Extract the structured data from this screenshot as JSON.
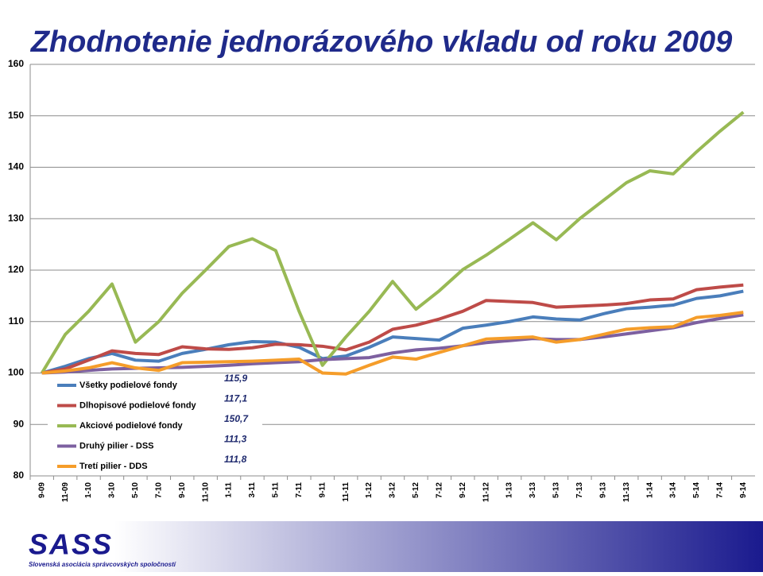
{
  "chart_data": {
    "type": "line",
    "title": "Zhodnotenie jednorázového vkladu od roku 2009",
    "categories": [
      "9-09",
      "11-09",
      "1-10",
      "3-10",
      "5-10",
      "7-10",
      "9-10",
      "11-10",
      "1-11",
      "3-11",
      "5-11",
      "7-11",
      "9-11",
      "11-11",
      "1-12",
      "3-12",
      "5-12",
      "7-12",
      "9-12",
      "11-12",
      "1-13",
      "3-13",
      "5-13",
      "7-13",
      "9-13",
      "11-13",
      "1-14",
      "3-14",
      "5-14",
      "7-14",
      "9-14"
    ],
    "series": [
      {
        "name": "Všetky podielové fondy",
        "color": "#4a7ebb",
        "values": [
          100,
          101.3,
          102.8,
          103.8,
          102.5,
          102.3,
          103.8,
          104.6,
          105.5,
          106.1,
          106,
          105,
          102.8,
          103.3,
          105,
          107,
          106.7,
          106.4,
          108.7,
          109.3,
          110,
          110.9,
          110.5,
          110.3,
          111.5,
          112.5,
          112.8,
          113.2,
          114.5,
          115,
          115.9
        ]
      },
      {
        "name": "Dlhopisové podielové fondy",
        "color": "#be4b48",
        "values": [
          100,
          100.8,
          102.5,
          104.3,
          103.8,
          103.6,
          105.1,
          104.7,
          104.6,
          104.9,
          105.6,
          105.5,
          105.2,
          104.5,
          106,
          108.5,
          109.3,
          110.5,
          112,
          114.1,
          113.9,
          113.7,
          112.8,
          113,
          113.2,
          113.5,
          114.2,
          114.4,
          116.2,
          116.7,
          117.1
        ]
      },
      {
        "name": "Akciové podielové fondy",
        "color": "#98b954",
        "values": [
          100,
          107.5,
          112,
          117.3,
          106,
          110,
          115.5,
          120,
          124.6,
          126.1,
          123.8,
          112,
          101.5,
          107,
          112,
          117.8,
          112.4,
          116,
          120.1,
          122.9,
          126,
          129.2,
          125.9,
          130,
          133.5,
          137,
          139.3,
          138.7,
          143,
          147,
          150.7
        ]
      },
      {
        "name": "Druhý pilier - DSS",
        "color": "#7d60a0",
        "values": [
          100,
          100.2,
          100.5,
          100.8,
          100.9,
          101,
          101.1,
          101.3,
          101.5,
          101.8,
          102,
          102.2,
          102.6,
          102.8,
          103,
          103.9,
          104.5,
          104.8,
          105.3,
          105.9,
          106.3,
          106.7,
          106.5,
          106.5,
          107,
          107.6,
          108.2,
          108.8,
          109.8,
          110.6,
          111.3
        ]
      },
      {
        "name": "Tretí pilier - DDS",
        "color": "#f59d2a",
        "values": [
          100,
          100.4,
          101,
          102,
          101,
          100.5,
          102,
          102.1,
          102.2,
          102.3,
          102.5,
          102.7,
          100,
          99.8,
          101.5,
          103.1,
          102.7,
          104,
          105.3,
          106.6,
          106.8,
          107,
          106,
          106.5,
          107.5,
          108.5,
          108.8,
          109,
          110.8,
          111.2,
          111.8
        ]
      }
    ],
    "end_labels": [
      "115,9",
      "117,1",
      "150,7",
      "111,3",
      "111,8"
    ],
    "ylim": [
      80,
      160
    ],
    "yticks": [
      80,
      90,
      100,
      110,
      120,
      130,
      140,
      150,
      160
    ],
    "grid": true,
    "legend": "lower left"
  },
  "footer": {
    "logo": "SASS",
    "caption": "Slovenská asociácia správcovských spoločností"
  }
}
